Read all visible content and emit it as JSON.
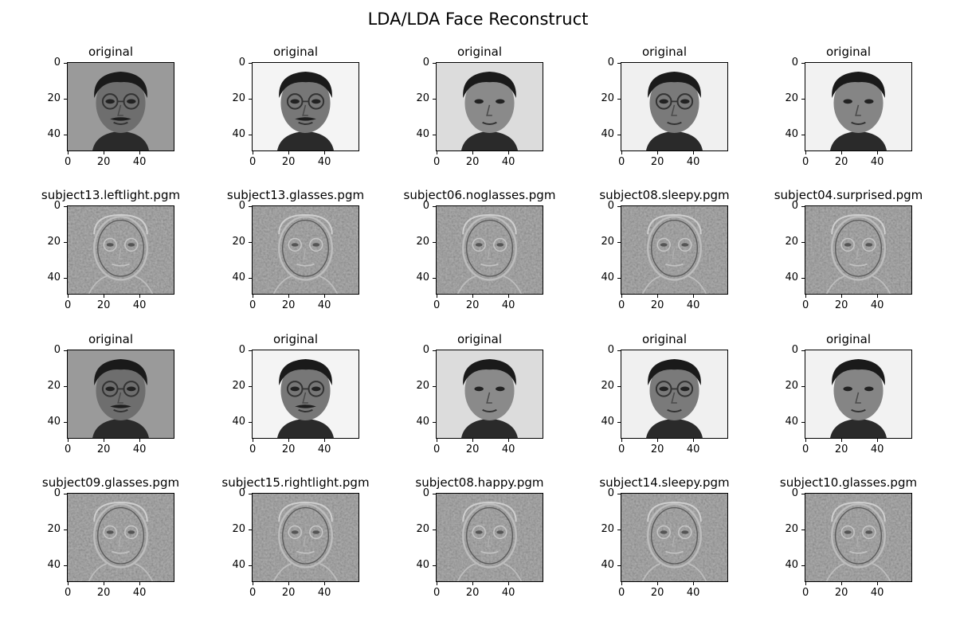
{
  "title": "LDA/LDA Face Reconstruct",
  "chart_data": {
    "type": "image_grid",
    "rows": 4,
    "cols": 5,
    "image_size": [
      60,
      50
    ],
    "x_ticks": [
      "0",
      "20",
      "40"
    ],
    "y_ticks": [
      "0",
      "20",
      "40"
    ],
    "panels": [
      {
        "title": "original",
        "kind": "original"
      },
      {
        "title": "original",
        "kind": "original"
      },
      {
        "title": "original",
        "kind": "original"
      },
      {
        "title": "original",
        "kind": "original"
      },
      {
        "title": "original",
        "kind": "original"
      },
      {
        "title": "subject13.leftlight.pgm",
        "kind": "reconstruction"
      },
      {
        "title": "subject13.glasses.pgm",
        "kind": "reconstruction"
      },
      {
        "title": "subject06.noglasses.pgm",
        "kind": "reconstruction"
      },
      {
        "title": "subject08.sleepy.pgm",
        "kind": "reconstruction"
      },
      {
        "title": "subject04.surprised.pgm",
        "kind": "reconstruction"
      },
      {
        "title": "original",
        "kind": "original"
      },
      {
        "title": "original",
        "kind": "original"
      },
      {
        "title": "original",
        "kind": "original"
      },
      {
        "title": "original",
        "kind": "original"
      },
      {
        "title": "original",
        "kind": "original"
      },
      {
        "title": "subject09.glasses.pgm",
        "kind": "reconstruction"
      },
      {
        "title": "subject15.rightlight.pgm",
        "kind": "reconstruction"
      },
      {
        "title": "subject08.happy.pgm",
        "kind": "reconstruction"
      },
      {
        "title": "subject14.sleepy.pgm",
        "kind": "reconstruction"
      },
      {
        "title": "subject10.glasses.pgm",
        "kind": "reconstruction"
      }
    ]
  }
}
